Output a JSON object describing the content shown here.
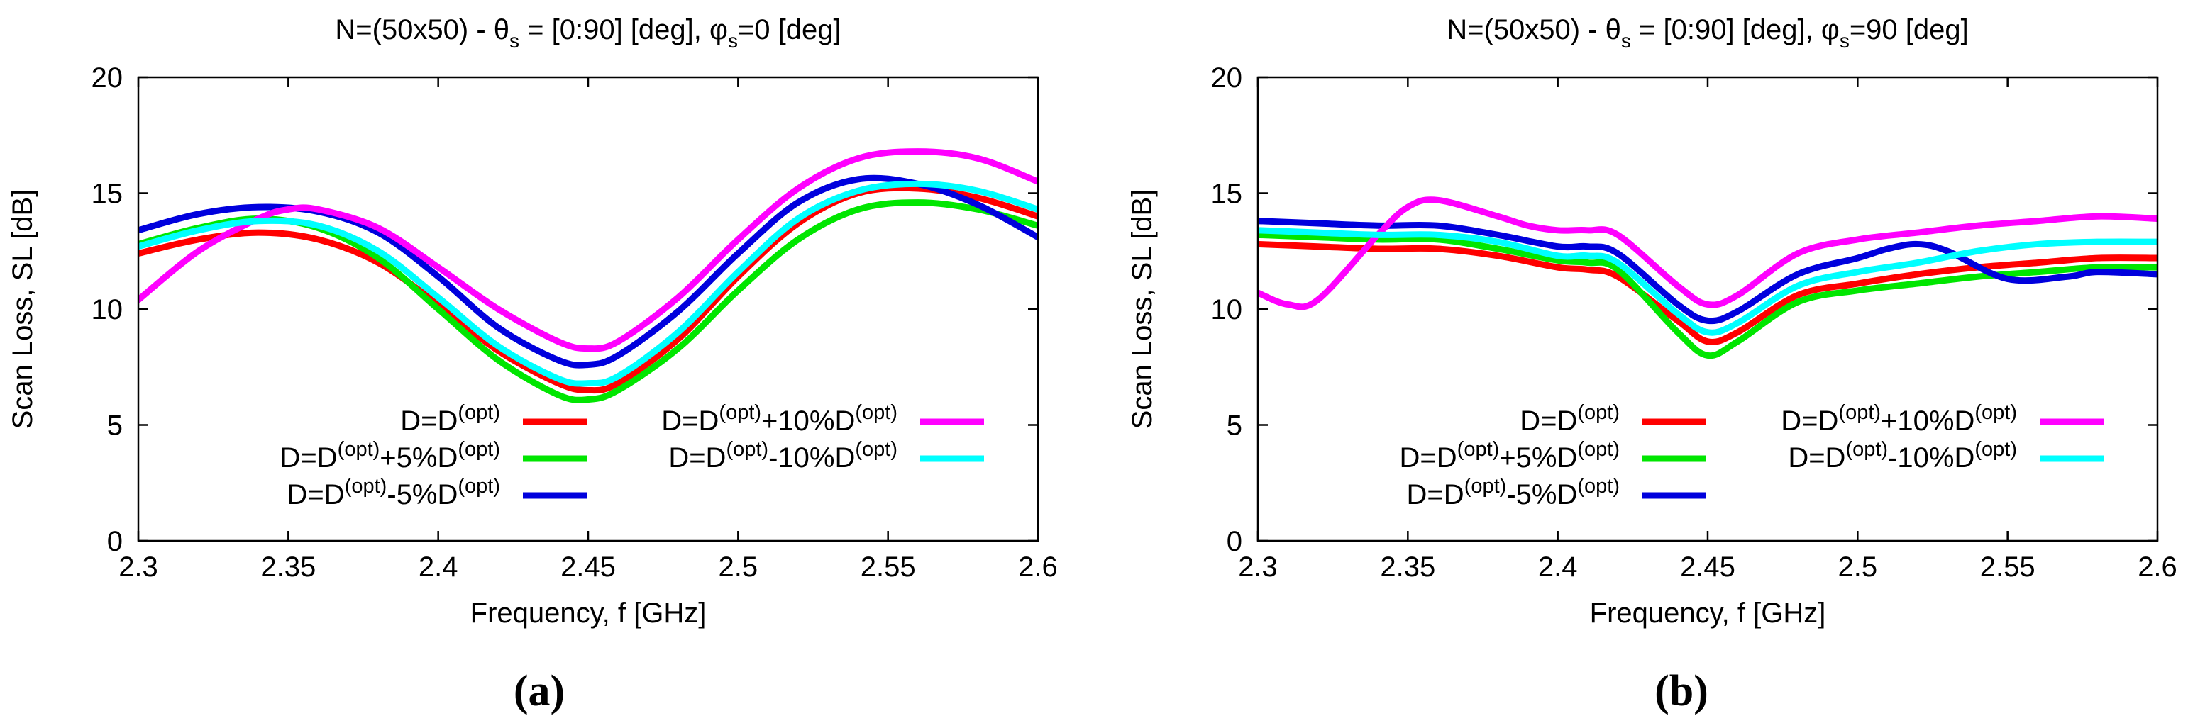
{
  "figure": {
    "caption_a": "(a)",
    "caption_b": "(b)"
  },
  "chart_data": [
    {
      "type": "line",
      "panel": "a",
      "title": {
        "prefix": "N=(50x50) - θ",
        "sub1": "s",
        "mid": " = [0:90] [deg], φ",
        "sub2": "s",
        "suffix": "=0 [deg]"
      },
      "xlabel": "Frequency, f [GHz]",
      "ylabel": "Scan Loss, SL [dB]",
      "xlim": [
        2.3,
        2.6
      ],
      "ylim": [
        0,
        20
      ],
      "xticks": [
        2.3,
        2.35,
        2.4,
        2.45,
        2.5,
        2.55,
        2.6
      ],
      "xtick_labels": [
        "2.3",
        "2.35",
        "2.4",
        "2.45",
        "2.5",
        "2.55",
        "2.6"
      ],
      "yticks": [
        0,
        5,
        10,
        15,
        20
      ],
      "ytick_labels": [
        "0",
        "5",
        "10",
        "15",
        "20"
      ],
      "legend_position": "bottom-center, two columns",
      "series": [
        {
          "name": "D=D(opt)",
          "label": {
            "base": "D=D",
            "sup1": "(opt)"
          },
          "color": "#ff0000",
          "x": [
            2.3,
            2.32,
            2.34,
            2.36,
            2.38,
            2.4,
            2.42,
            2.44,
            2.45,
            2.46,
            2.48,
            2.5,
            2.52,
            2.54,
            2.56,
            2.58,
            2.6
          ],
          "y": [
            12.4,
            13.0,
            13.3,
            13.0,
            12.0,
            10.2,
            8.2,
            6.8,
            6.5,
            6.8,
            8.7,
            11.4,
            13.7,
            15.0,
            15.2,
            14.8,
            14.0
          ]
        },
        {
          "name": "D=D(opt)+5%D(opt)",
          "label": {
            "base": "D=D",
            "sup1": "(opt)",
            "mid": "+5%D",
            "sup2": "(opt)"
          },
          "color": "#00e600",
          "x": [
            2.3,
            2.32,
            2.34,
            2.36,
            2.38,
            2.4,
            2.42,
            2.44,
            2.45,
            2.46,
            2.48,
            2.5,
            2.52,
            2.54,
            2.56,
            2.58,
            2.6
          ],
          "y": [
            12.8,
            13.5,
            13.9,
            13.5,
            12.2,
            10.0,
            7.8,
            6.3,
            6.1,
            6.5,
            8.3,
            10.8,
            13.0,
            14.3,
            14.6,
            14.3,
            13.6
          ]
        },
        {
          "name": "D=D(opt)-5%D(opt)",
          "label": {
            "base": "D=D",
            "sup1": "(opt)",
            "mid": "-5%D",
            "sup2": "(opt)"
          },
          "color": "#0000dd",
          "x": [
            2.3,
            2.32,
            2.34,
            2.36,
            2.38,
            2.4,
            2.42,
            2.44,
            2.45,
            2.46,
            2.48,
            2.5,
            2.52,
            2.54,
            2.56,
            2.58,
            2.6
          ],
          "y": [
            13.4,
            14.1,
            14.4,
            14.2,
            13.3,
            11.4,
            9.2,
            7.8,
            7.6,
            8.0,
            9.9,
            12.4,
            14.6,
            15.6,
            15.4,
            14.5,
            13.1
          ]
        },
        {
          "name": "D=D(opt)+10%D(opt)",
          "label": {
            "base": "D=D",
            "sup1": "(opt)",
            "mid": "+10%D",
            "sup2": "(opt)"
          },
          "color": "#ff00ff",
          "x": [
            2.3,
            2.32,
            2.34,
            2.35,
            2.36,
            2.38,
            2.4,
            2.42,
            2.44,
            2.45,
            2.46,
            2.48,
            2.5,
            2.52,
            2.54,
            2.56,
            2.58,
            2.6
          ],
          "y": [
            10.4,
            12.5,
            13.9,
            14.3,
            14.3,
            13.5,
            11.8,
            10.0,
            8.6,
            8.3,
            8.6,
            10.5,
            13.0,
            15.2,
            16.5,
            16.8,
            16.5,
            15.5
          ]
        },
        {
          "name": "D=D(opt)-10%D(opt)",
          "label": {
            "base": "D=D",
            "sup1": "(opt)",
            "mid": "-10%D",
            "sup2": "(opt)"
          },
          "color": "#00ffff",
          "x": [
            2.3,
            2.32,
            2.34,
            2.36,
            2.38,
            2.4,
            2.42,
            2.44,
            2.45,
            2.46,
            2.48,
            2.5,
            2.52,
            2.54,
            2.56,
            2.58,
            2.6
          ],
          "y": [
            12.7,
            13.4,
            13.8,
            13.6,
            12.5,
            10.5,
            8.4,
            7.0,
            6.8,
            7.1,
            9.0,
            11.6,
            13.9,
            15.1,
            15.4,
            15.1,
            14.3
          ]
        }
      ]
    },
    {
      "type": "line",
      "panel": "b",
      "title": {
        "prefix": "N=(50x50) - θ",
        "sub1": "s",
        "mid": " = [0:90] [deg], φ",
        "sub2": "s",
        "suffix": "=90 [deg]"
      },
      "xlabel": "Frequency, f [GHz]",
      "ylabel": "Scan Loss, SL [dB]",
      "xlim": [
        2.3,
        2.6
      ],
      "ylim": [
        0,
        20
      ],
      "xticks": [
        2.3,
        2.35,
        2.4,
        2.45,
        2.5,
        2.55,
        2.6
      ],
      "xtick_labels": [
        "2.3",
        "2.35",
        "2.4",
        "2.45",
        "2.5",
        "2.55",
        "2.6"
      ],
      "yticks": [
        0,
        5,
        10,
        15,
        20
      ],
      "ytick_labels": [
        "0",
        "5",
        "10",
        "15",
        "20"
      ],
      "legend_position": "bottom-center, two columns",
      "series": [
        {
          "name": "D=D(opt)",
          "label": {
            "base": "D=D",
            "sup1": "(opt)"
          },
          "color": "#ff0000",
          "x": [
            2.3,
            2.32,
            2.34,
            2.36,
            2.38,
            2.4,
            2.41,
            2.42,
            2.44,
            2.45,
            2.46,
            2.48,
            2.5,
            2.52,
            2.54,
            2.56,
            2.58,
            2.6
          ],
          "y": [
            12.8,
            12.7,
            12.6,
            12.6,
            12.3,
            11.8,
            11.7,
            11.4,
            9.5,
            8.6,
            9.0,
            10.6,
            11.1,
            11.5,
            11.8,
            12.0,
            12.2,
            12.2
          ]
        },
        {
          "name": "D=D(opt)+5%D(opt)",
          "label": {
            "base": "D=D",
            "sup1": "(opt)",
            "mid": "+5%D",
            "sup2": "(opt)"
          },
          "color": "#00e600",
          "x": [
            2.3,
            2.32,
            2.34,
            2.36,
            2.38,
            2.4,
            2.41,
            2.42,
            2.44,
            2.45,
            2.46,
            2.48,
            2.5,
            2.52,
            2.54,
            2.56,
            2.58,
            2.6
          ],
          "y": [
            13.2,
            13.1,
            13.0,
            13.0,
            12.6,
            12.1,
            12.0,
            11.7,
            9.0,
            8.0,
            8.6,
            10.3,
            10.8,
            11.1,
            11.4,
            11.6,
            11.8,
            11.8
          ]
        },
        {
          "name": "D=D(opt)-5%D(opt)",
          "label": {
            "base": "D=D",
            "sup1": "(opt)",
            "mid": "-5%D",
            "sup2": "(opt)"
          },
          "color": "#0000dd",
          "x": [
            2.3,
            2.32,
            2.34,
            2.36,
            2.38,
            2.4,
            2.41,
            2.42,
            2.44,
            2.45,
            2.46,
            2.48,
            2.5,
            2.51,
            2.52,
            2.53,
            2.55,
            2.57,
            2.58,
            2.6
          ],
          "y": [
            13.8,
            13.7,
            13.6,
            13.6,
            13.2,
            12.7,
            12.7,
            12.4,
            10.2,
            9.5,
            9.9,
            11.5,
            12.2,
            12.6,
            12.8,
            12.5,
            11.3,
            11.4,
            11.6,
            11.5
          ]
        },
        {
          "name": "D=D(opt)+10%D(opt)",
          "label": {
            "base": "D=D",
            "sup1": "(opt)",
            "mid": "+10%D",
            "sup2": "(opt)"
          },
          "color": "#ff00ff",
          "x": [
            2.3,
            2.31,
            2.32,
            2.34,
            2.35,
            2.36,
            2.38,
            2.39,
            2.4,
            2.41,
            2.42,
            2.44,
            2.45,
            2.46,
            2.48,
            2.5,
            2.52,
            2.54,
            2.56,
            2.58,
            2.6
          ],
          "y": [
            10.7,
            10.2,
            10.4,
            13.2,
            14.4,
            14.7,
            14.0,
            13.6,
            13.4,
            13.4,
            13.2,
            11.0,
            10.2,
            10.6,
            12.4,
            13.0,
            13.3,
            13.6,
            13.8,
            14.0,
            13.9
          ]
        },
        {
          "name": "D=D(opt)-10%D(opt)",
          "label": {
            "base": "D=D",
            "sup1": "(opt)",
            "mid": "-10%D",
            "sup2": "(opt)"
          },
          "color": "#00ffff",
          "x": [
            2.3,
            2.32,
            2.34,
            2.36,
            2.38,
            2.4,
            2.41,
            2.42,
            2.44,
            2.45,
            2.46,
            2.48,
            2.5,
            2.52,
            2.54,
            2.56,
            2.58,
            2.6
          ],
          "y": [
            13.4,
            13.3,
            13.2,
            13.2,
            12.9,
            12.3,
            12.3,
            12.0,
            9.8,
            9.0,
            9.4,
            11.0,
            11.6,
            12.0,
            12.5,
            12.8,
            12.9,
            12.9
          ]
        }
      ]
    }
  ]
}
